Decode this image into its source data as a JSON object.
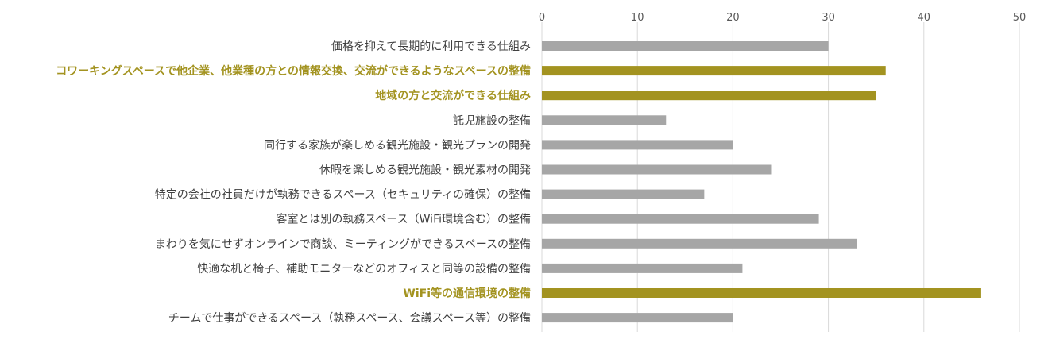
{
  "chart_data": {
    "type": "bar",
    "orientation": "horizontal",
    "x_ticks": [
      "0",
      "10",
      "20",
      "30",
      "40",
      "50"
    ],
    "xlim": [
      0,
      50
    ],
    "grid": true,
    "colors": {
      "default": "#a6a6a6",
      "highlight": "#a39320",
      "highlight_text": "#a39320"
    },
    "categories": [
      "価格を抑えて長期的に利用できる仕組み",
      "コワーキングスペースで他企業、他業種の方との情報交換、交流ができるようなスペースの整備",
      "地域の方と交流ができる仕組み",
      "託児施設の整備",
      "同行する家族が楽しめる観光施設・観光プランの開発",
      "休暇を楽しめる観光施設・観光素材の開発",
      "特定の会社の社員だけが執務できるスペース（セキュリティの確保）の整備",
      "客室とは別の執務スペース（WiFi環境含む）の整備",
      "まわりを気にせずオンラインで商談、ミーティングができるスペースの整備",
      "快適な机と椅子、補助モニターなどのオフィスと同等の設備の整備",
      "WiFi等の通信環境の整備",
      "チームで仕事ができるスペース（執務スペース、会議スペース等）の整備"
    ],
    "values": [
      30,
      36,
      35,
      13,
      20,
      24,
      17,
      29,
      33,
      21,
      46,
      20
    ],
    "highlighted": [
      false,
      true,
      true,
      false,
      false,
      false,
      false,
      false,
      false,
      false,
      true,
      false
    ]
  }
}
